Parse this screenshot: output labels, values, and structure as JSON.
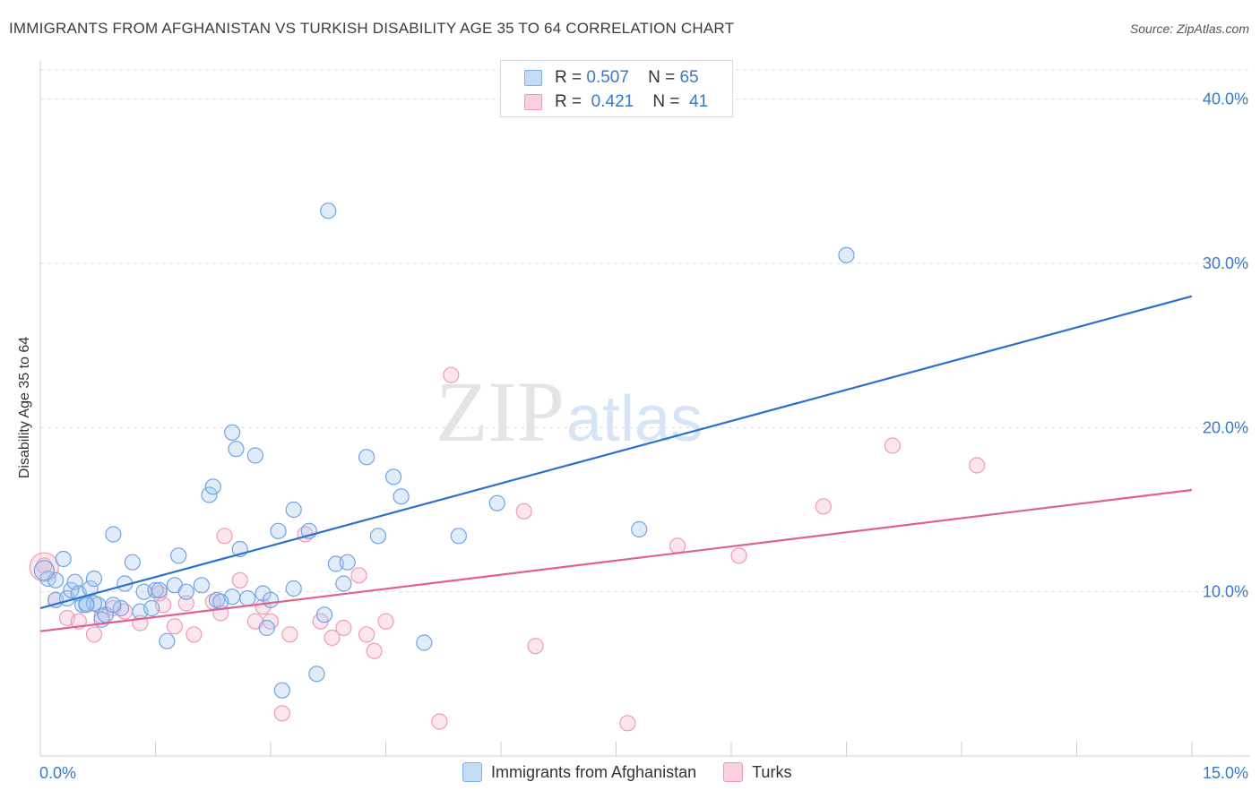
{
  "header": {
    "title": "IMMIGRANTS FROM AFGHANISTAN VS TURKISH DISABILITY AGE 35 TO 64 CORRELATION CHART",
    "source": "Source: ZipAtlas.com"
  },
  "watermark": {
    "zip": "ZIP",
    "atlas": "atlas"
  },
  "legend": {
    "rows": [
      {
        "r_label": "R =",
        "r_value": "0.507",
        "n_label": "N =",
        "n_value": "65",
        "color": "#a9c8f0"
      },
      {
        "r_label": "R =",
        "r_value": "0.421",
        "n_label": "N =",
        "n_value": "41",
        "color": "#f6b8cb"
      }
    ]
  },
  "bottom_legend": {
    "series1": "Immigrants from Afghanistan",
    "series2": "Turks"
  },
  "chart_data": {
    "type": "scatter",
    "title": "IMMIGRANTS FROM AFGHANISTAN VS TURKISH DISABILITY AGE 35 TO 64 CORRELATION CHART",
    "ylabel": "Disability Age 35 to 64",
    "xlabel": "",
    "xlim": [
      0,
      15
    ],
    "ylim": [
      0,
      42
    ],
    "x_tick_labels": [
      "0.0%",
      "15.0%"
    ],
    "y_tick_labels": [
      "10.0%",
      "20.0%",
      "30.0%",
      "40.0%"
    ],
    "y_ticks": [
      10,
      20,
      30,
      40
    ],
    "grid": true,
    "series": [
      {
        "name": "Immigrants from Afghanistan",
        "color": "#6fa3e3",
        "line_color": "#2b6fcf",
        "trend": {
          "x": [
            0,
            15
          ],
          "y": [
            9.0,
            28.0
          ]
        },
        "points": [
          [
            0.1,
            10.8
          ],
          [
            0.2,
            10.7
          ],
          [
            0.3,
            12.0
          ],
          [
            0.2,
            9.5
          ],
          [
            0.35,
            9.6
          ],
          [
            0.4,
            10.1
          ],
          [
            0.45,
            10.6
          ],
          [
            0.5,
            9.9
          ],
          [
            0.55,
            9.2
          ],
          [
            0.6,
            9.3
          ],
          [
            0.65,
            10.2
          ],
          [
            0.7,
            10.8
          ],
          [
            0.75,
            9.2
          ],
          [
            0.8,
            8.3
          ],
          [
            0.85,
            8.6
          ],
          [
            0.95,
            13.5
          ],
          [
            1.05,
            9.0
          ],
          [
            1.1,
            10.5
          ],
          [
            1.2,
            11.8
          ],
          [
            1.3,
            8.8
          ],
          [
            1.35,
            10.0
          ],
          [
            1.5,
            10.1
          ],
          [
            1.55,
            10.1
          ],
          [
            1.65,
            7.0
          ],
          [
            1.75,
            10.4
          ],
          [
            1.8,
            12.2
          ],
          [
            1.9,
            10.0
          ],
          [
            2.1,
            10.4
          ],
          [
            2.2,
            15.9
          ],
          [
            2.25,
            16.4
          ],
          [
            2.3,
            9.5
          ],
          [
            2.5,
            9.7
          ],
          [
            2.5,
            19.7
          ],
          [
            2.55,
            18.7
          ],
          [
            2.6,
            12.6
          ],
          [
            2.7,
            9.6
          ],
          [
            2.8,
            18.3
          ],
          [
            2.9,
            9.9
          ],
          [
            2.95,
            7.8
          ],
          [
            3.1,
            13.7
          ],
          [
            3.15,
            4.0
          ],
          [
            3.3,
            15.0
          ],
          [
            3.3,
            10.2
          ],
          [
            3.5,
            13.7
          ],
          [
            3.6,
            5.0
          ],
          [
            3.7,
            8.6
          ],
          [
            3.75,
            33.2
          ],
          [
            3.85,
            11.7
          ],
          [
            3.95,
            10.5
          ],
          [
            4.0,
            11.8
          ],
          [
            4.25,
            18.2
          ],
          [
            4.4,
            13.4
          ],
          [
            4.6,
            17.0
          ],
          [
            4.7,
            15.8
          ],
          [
            5.0,
            6.9
          ],
          [
            5.45,
            13.4
          ],
          [
            5.95,
            15.4
          ],
          [
            7.8,
            13.8
          ],
          [
            10.5,
            30.5
          ],
          [
            0.95,
            9.2
          ],
          [
            1.45,
            9.0
          ],
          [
            0.7,
            9.3
          ],
          [
            2.35,
            9.4
          ],
          [
            3.0,
            9.5
          ],
          [
            0.6,
            9.2
          ]
        ]
      },
      {
        "name": "Turks",
        "color": "#f19ab5",
        "line_color": "#e0608e",
        "trend": {
          "x": [
            0,
            15
          ],
          "y": [
            7.6,
            16.2
          ]
        },
        "points": [
          [
            0.05,
            11.6
          ],
          [
            0.2,
            9.5
          ],
          [
            0.35,
            8.4
          ],
          [
            0.5,
            8.2
          ],
          [
            0.7,
            7.4
          ],
          [
            0.8,
            8.5
          ],
          [
            0.95,
            9.0
          ],
          [
            1.1,
            8.8
          ],
          [
            1.3,
            8.1
          ],
          [
            1.55,
            9.9
          ],
          [
            1.6,
            9.2
          ],
          [
            1.75,
            7.9
          ],
          [
            1.9,
            9.3
          ],
          [
            2.0,
            7.4
          ],
          [
            2.25,
            9.4
          ],
          [
            2.35,
            8.7
          ],
          [
            2.4,
            13.4
          ],
          [
            2.6,
            10.7
          ],
          [
            2.8,
            8.2
          ],
          [
            2.9,
            9.1
          ],
          [
            3.0,
            8.2
          ],
          [
            3.15,
            2.6
          ],
          [
            3.25,
            7.4
          ],
          [
            3.45,
            13.5
          ],
          [
            3.65,
            8.2
          ],
          [
            3.8,
            7.2
          ],
          [
            3.95,
            7.8
          ],
          [
            4.15,
            11.0
          ],
          [
            4.25,
            7.4
          ],
          [
            4.35,
            6.4
          ],
          [
            4.5,
            8.2
          ],
          [
            5.2,
            2.1
          ],
          [
            5.35,
            23.2
          ],
          [
            6.3,
            14.9
          ],
          [
            6.45,
            6.7
          ],
          [
            7.65,
            2.0
          ],
          [
            8.3,
            12.8
          ],
          [
            9.1,
            12.2
          ],
          [
            10.2,
            15.2
          ],
          [
            11.1,
            18.9
          ],
          [
            12.2,
            17.7
          ]
        ]
      }
    ]
  }
}
